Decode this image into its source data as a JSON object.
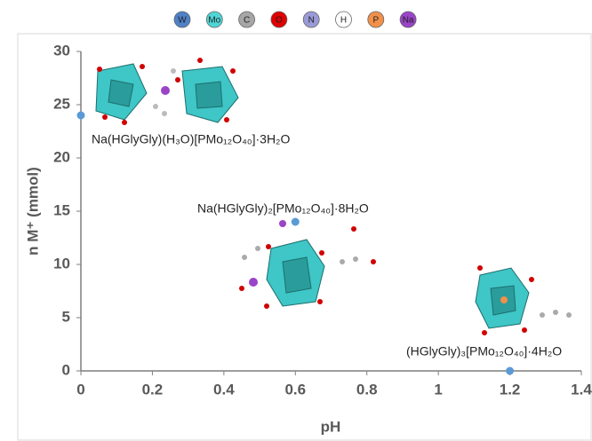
{
  "chart_data": {
    "type": "scatter",
    "atom_legend": [
      {
        "label": "W",
        "color": "#4f81c7"
      },
      {
        "label": "Mo",
        "color": "#4fd6d6"
      },
      {
        "label": "C",
        "color": "#a6a6a6"
      },
      {
        "label": "O",
        "color": "#e00000"
      },
      {
        "label": "N",
        "color": "#9a9ad8"
      },
      {
        "label": "H",
        "color": "#ffffff"
      },
      {
        "label": "P",
        "color": "#f0904a"
      },
      {
        "label": "Na",
        "color": "#9a44c8"
      }
    ],
    "x_label": "pH",
    "y_label": "n M⁺ (mmol)",
    "series": [
      {
        "color": "#5b9bd5",
        "x": [
          0,
          0.6,
          1.2
        ],
        "values": [
          24,
          14,
          0
        ]
      }
    ],
    "annotations": [
      "Na(HGlyGly)(H₃O)[PMo₁₂O₄₀]·3H₂O",
      "Na(HGlyGly)₂[PMo₁₂O₄₀]·8H₂O",
      "(HGlyGly)₃[PMo₁₂O₄₀]·4H₂O"
    ],
    "xlim": [
      0,
      1.4
    ],
    "xticks": [
      0,
      0.2,
      0.4,
      0.6,
      0.8,
      1,
      1.2,
      1.4
    ],
    "ylim": [
      0,
      30
    ],
    "yticks": [
      0,
      5,
      10,
      15,
      20,
      25,
      30
    ],
    "grid": false
  }
}
